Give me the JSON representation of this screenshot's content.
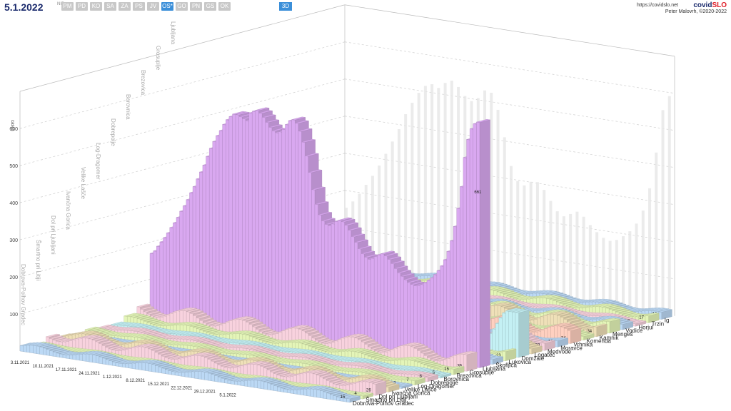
{
  "header": {
    "date": "5.1.2022",
    "date_sup": "NIP",
    "regions": [
      "PM",
      "PD",
      "KO",
      "SA",
      "ZA",
      "PS",
      "JV",
      "OS*",
      "GO",
      "PN",
      "GS",
      "OK"
    ],
    "active_region": "OS*",
    "button_3d": "3D",
    "url": "https://covidslo.net",
    "brand_a": "covid",
    "brand_b": "SLO",
    "author": "Peter Malovrh, ©2020-2022"
  },
  "chart_data": {
    "type": "bar",
    "ylabel": "cases",
    "ylim": [
      0,
      700
    ],
    "yticks": [
      100,
      200,
      300,
      400,
      500,
      600
    ],
    "date_ticks": [
      "3.11.2021",
      "10.11.2021",
      "17.11.2021",
      "24.11.2021",
      "1.12.2021",
      "8.12.2021",
      "15.12.2021",
      "22.12.2021",
      "29.12.2021",
      "5.1.2022"
    ],
    "colors": {
      "ljubljana": "#d9a8f0",
      "blue": "#bcd9f5",
      "green": "#e4f5b8",
      "pink": "#f8d2de",
      "cyan": "#c4f0f4",
      "tan": "#efe0b8",
      "salmon": "#ffd0c0",
      "grid": "#cfcfcf",
      "ghost": "#e6e6e6"
    },
    "municipalities": [
      {
        "name": "Dobrova-Polhov Gradec",
        "latest": "15",
        "color": "blue"
      },
      {
        "name": "Šmartno pri Litiji",
        "latest": "4",
        "color": "green"
      },
      {
        "name": "Dol pri Ljubljani",
        "latest": "26",
        "color": "pink"
      },
      {
        "name": "Ivančna Gorica",
        "latest": "22",
        "color": "tan"
      },
      {
        "name": "Velike Lašče",
        "latest": "2",
        "color": "blue"
      },
      {
        "name": "Log-Dragomer",
        "latest": "7",
        "color": "green"
      },
      {
        "name": "Dobrepolje",
        "latest": "8",
        "color": "pink"
      },
      {
        "name": "Borovnica",
        "latest": "5",
        "color": "cyan"
      },
      {
        "name": "Brezovica",
        "latest": "15",
        "color": "green"
      },
      {
        "name": "Grosuplje",
        "latest": "36",
        "color": "pink"
      },
      {
        "name": "Ljubljana",
        "latest": "661",
        "color": "ljubljana"
      },
      {
        "name": "Škofljica",
        "latest": "27",
        "color": "blue"
      },
      {
        "name": "Lukovica",
        "latest": "23",
        "color": "green"
      },
      {
        "name": "Domžale",
        "latest": "111",
        "color": "cyan"
      },
      {
        "name": "Logatec",
        "latest": "22",
        "color": "tan"
      },
      {
        "name": "Medvode",
        "latest": "33",
        "color": "pink"
      },
      {
        "name": "Moravče",
        "latest": "12",
        "color": "blue"
      },
      {
        "name": "Vrhnika",
        "latest": "34",
        "color": "salmon"
      },
      {
        "name": "Komenda",
        "latest": "17",
        "color": "green"
      },
      {
        "name": "Kamnik",
        "latest": "34",
        "color": "tan"
      },
      {
        "name": "Mengeš",
        "latest": "24",
        "color": "green"
      },
      {
        "name": "Vodice",
        "latest": "15",
        "color": "blue"
      },
      {
        "name": "Horjul",
        "latest": "8",
        "color": "pink"
      },
      {
        "name": "Trzin",
        "latest": "17",
        "color": "green"
      },
      {
        "name": "Ig",
        "latest": "14",
        "color": "blue"
      }
    ],
    "back_wall_labels": [
      "Ljubljana",
      "Grosuplje",
      "Brezovica",
      "Borovnica",
      "Dobrepolje",
      "Log-Dragomer",
      "Velike Lašče",
      "Ivančna Gorica",
      "Dol pri Ljubljani",
      "Šmartno pri Litiji",
      "Dobrova-Polhov Gradec"
    ],
    "ljubljana_series": [
      170,
      178,
      192,
      205,
      218,
      232,
      248,
      262,
      278,
      296,
      312,
      330,
      350,
      368,
      390,
      410,
      430,
      455,
      478,
      498,
      515,
      530,
      548,
      562,
      572,
      580,
      580,
      576,
      572,
      568,
      590,
      596,
      600,
      594,
      584,
      572,
      560,
      552,
      548,
      552,
      560,
      574,
      586,
      590,
      582,
      562,
      534,
      498,
      455,
      410,
      372,
      345,
      330,
      322,
      320,
      326,
      334,
      338,
      336,
      328,
      316,
      300,
      286,
      270,
      258,
      250,
      246,
      250,
      256,
      262,
      266,
      262,
      254,
      244,
      232,
      222,
      214,
      206,
      200,
      196,
      194,
      196,
      200,
      206,
      214,
      222,
      232,
      244,
      258,
      276,
      300,
      330,
      370,
      420,
      480,
      560,
      610,
      640,
      655,
      661
    ]
  }
}
